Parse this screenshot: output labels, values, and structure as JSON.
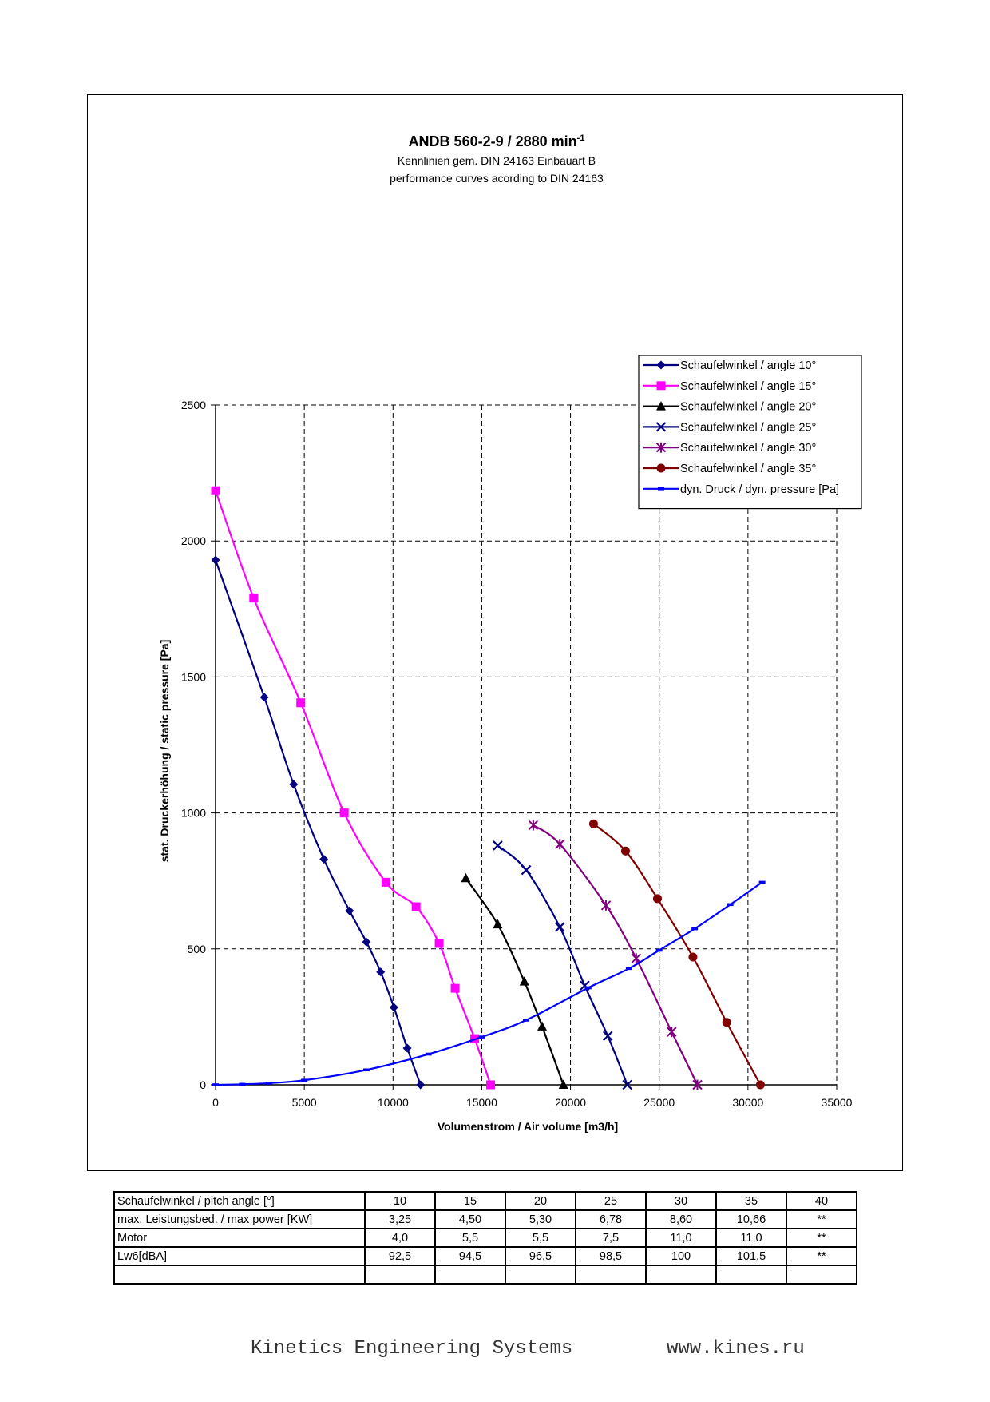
{
  "chart_data": {
    "type": "line",
    "title": "ANDB 560-2-9 / 2880 min",
    "title_superscript": "-1",
    "subtitle_lines": [
      "Kennlinien gem. DIN 24163 Einbauart B",
      "performance curves acording to DIN 24163"
    ],
    "xlabel": "Volumenstrom / Air volume [m3/h]",
    "ylabel": "stat. Druckerhöhung / static pressure [Pa]",
    "xlim": [
      0,
      35000
    ],
    "ylim": [
      0,
      2500
    ],
    "xticks": [
      0,
      5000,
      10000,
      15000,
      20000,
      25000,
      30000,
      35000
    ],
    "yticks": [
      0,
      500,
      1000,
      1500,
      2000,
      2500
    ],
    "grid": true,
    "legend_position": "top-right",
    "series": [
      {
        "name": "Schaufelwinkel / angle 10°",
        "color": "#000080",
        "marker": "diamond",
        "points": [
          [
            0,
            1930
          ],
          [
            2750,
            1425
          ],
          [
            4400,
            1105
          ],
          [
            6100,
            830
          ],
          [
            7550,
            640
          ],
          [
            8500,
            525
          ],
          [
            9300,
            415
          ],
          [
            10050,
            285
          ],
          [
            10800,
            135
          ],
          [
            11550,
            0
          ]
        ]
      },
      {
        "name": "Schaufelwinkel / angle 15°",
        "color": "#ff00ff",
        "marker": "square",
        "points": [
          [
            0,
            2185
          ],
          [
            2150,
            1790
          ],
          [
            4800,
            1405
          ],
          [
            7250,
            1000
          ],
          [
            9600,
            745
          ],
          [
            11300,
            655
          ],
          [
            12600,
            520
          ],
          [
            13500,
            355
          ],
          [
            14600,
            170
          ],
          [
            15500,
            0
          ]
        ]
      },
      {
        "name": "Schaufelwinkel / angle 20°",
        "color": "#000000",
        "marker": "triangle",
        "points": [
          [
            14100,
            760
          ],
          [
            15900,
            590
          ],
          [
            17400,
            380
          ],
          [
            18400,
            215
          ],
          [
            19600,
            0
          ]
        ]
      },
      {
        "name": "Schaufelwinkel / angle 25°",
        "color": "#000080",
        "marker": "x",
        "points": [
          [
            15900,
            880
          ],
          [
            17500,
            790
          ],
          [
            19400,
            580
          ],
          [
            20800,
            365
          ],
          [
            22100,
            180
          ],
          [
            23200,
            0
          ]
        ]
      },
      {
        "name": "Schaufelwinkel / angle 30°",
        "color": "#800080",
        "marker": "star",
        "points": [
          [
            17900,
            955
          ],
          [
            19400,
            885
          ],
          [
            22000,
            660
          ],
          [
            23700,
            465
          ],
          [
            25700,
            195
          ],
          [
            27150,
            0
          ]
        ]
      },
      {
        "name": "Schaufelwinkel / angle 35°",
        "color": "#800000",
        "marker": "circle",
        "points": [
          [
            21300,
            960
          ],
          [
            23100,
            860
          ],
          [
            24900,
            685
          ],
          [
            26900,
            470
          ],
          [
            28800,
            230
          ],
          [
            30700,
            0
          ]
        ]
      },
      {
        "name": "dyn. Druck / dyn. pressure [Pa]",
        "color": "#0000ff",
        "marker": "dash",
        "points": [
          [
            0,
            0
          ],
          [
            1500,
            2
          ],
          [
            3000,
            6
          ],
          [
            5000,
            17
          ],
          [
            8500,
            55
          ],
          [
            12000,
            113
          ],
          [
            15000,
            176
          ],
          [
            17500,
            238
          ],
          [
            21000,
            357
          ],
          [
            23300,
            428
          ],
          [
            25000,
            495
          ],
          [
            27000,
            574
          ],
          [
            29000,
            663
          ],
          [
            30800,
            745
          ]
        ]
      }
    ]
  },
  "table": {
    "rows": [
      {
        "label": "Schaufelwinkel / pitch angle [°]",
        "values": [
          "10",
          "15",
          "20",
          "25",
          "30",
          "35",
          "40"
        ]
      },
      {
        "label": "max. Leistungsbed. / max power [KW]",
        "values": [
          "3,25",
          "4,50",
          "5,30",
          "6,78",
          "8,60",
          "10,66",
          "**"
        ]
      },
      {
        "label": "Motor",
        "values": [
          "4,0",
          "5,5",
          "5,5",
          "7,5",
          "11,0",
          "11,0",
          "**"
        ]
      },
      {
        "label": "Lw6[dBA]",
        "values": [
          "92,5",
          "94,5",
          "96,5",
          "98,5",
          "100",
          "101,5",
          "**"
        ]
      },
      {
        "label": "",
        "values": [
          "",
          "",
          "",
          "",
          "",
          "",
          ""
        ]
      }
    ]
  },
  "footer": {
    "company": "Kinetics Engineering Systems",
    "website": "www.kines.ru"
  }
}
